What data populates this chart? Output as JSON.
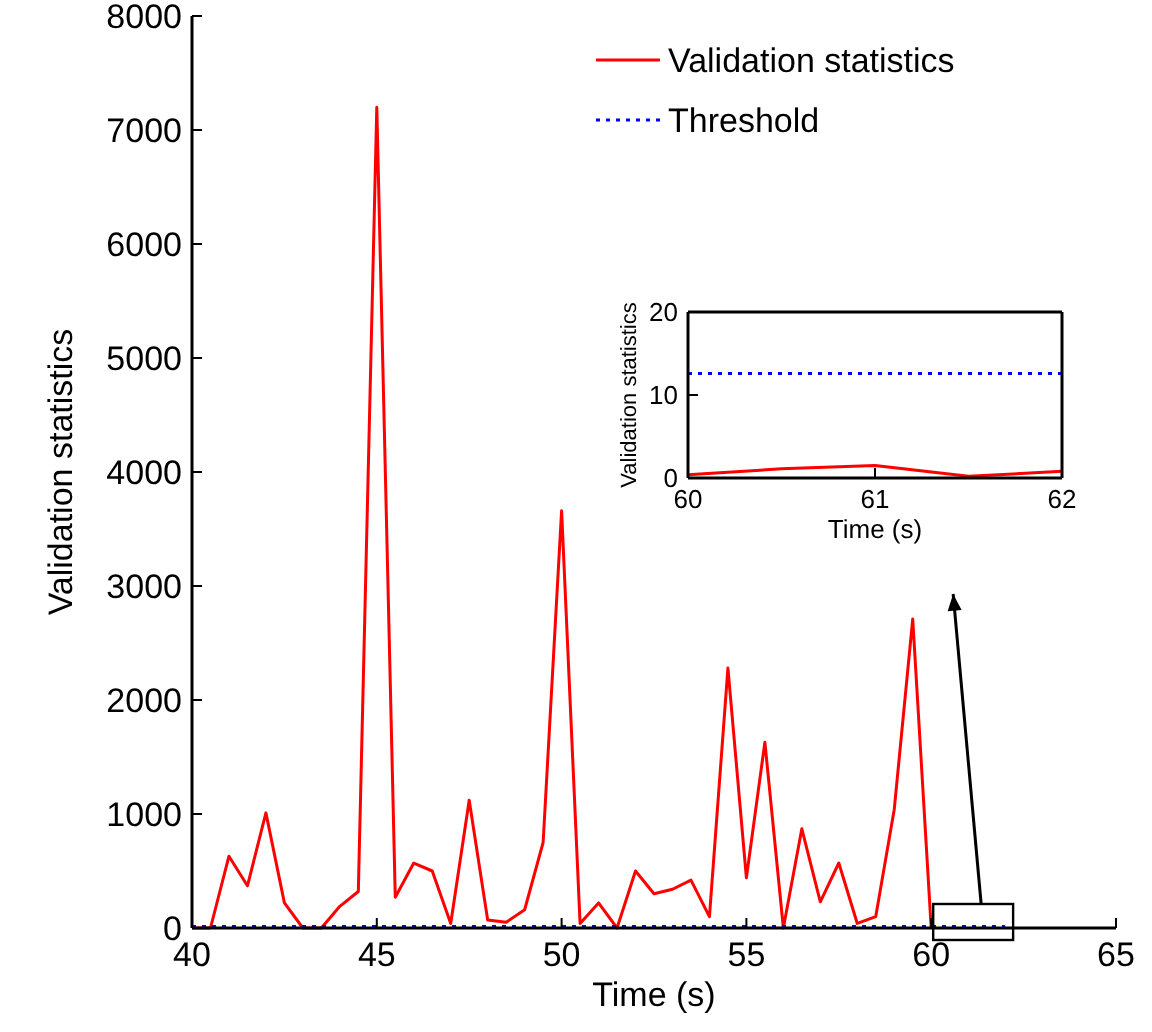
{
  "chart_data": [
    {
      "type": "line",
      "xlabel": "Time (s)",
      "ylabel": "Validation statistics",
      "xlim": [
        40,
        65
      ],
      "xticks": [
        40,
        45,
        50,
        55,
        60,
        65
      ],
      "ylim": [
        0,
        8000
      ],
      "yticks": [
        0,
        1000,
        2000,
        3000,
        4000,
        5000,
        6000,
        7000,
        8000
      ],
      "legend": "top right",
      "grid": false,
      "series": [
        {
          "name": "Validation statistics",
          "color": "#ff0000",
          "line_style": "solid",
          "x": [
            40,
            40.5,
            41,
            41.5,
            42,
            42.5,
            43,
            43.5,
            44,
            44.5,
            45,
            45.5,
            46,
            46.5,
            47,
            47.5,
            48,
            48.5,
            49,
            49.5,
            50,
            50.5,
            51,
            51.5,
            52,
            52.5,
            53,
            53.5,
            54,
            54.5,
            55,
            55.5,
            56,
            56.5,
            57,
            57.5,
            58,
            58.5,
            59,
            59.5,
            60
          ],
          "values": [
            0,
            0,
            630,
            370,
            1010,
            220,
            0,
            0,
            190,
            320,
            7200,
            270,
            570,
            500,
            40,
            1120,
            70,
            50,
            160,
            750,
            3660,
            40,
            220,
            0,
            500,
            300,
            340,
            420,
            100,
            2280,
            440,
            1630,
            0,
            870,
            230,
            570,
            40,
            100,
            1040,
            2710,
            0
          ]
        },
        {
          "name": "Threshold",
          "color": "#0000ff",
          "line_style": "dotted",
          "x": [
            40,
            62
          ],
          "values": [
            12.6,
            12.6
          ]
        }
      ]
    },
    {
      "type": "line",
      "xlabel": "Time (s)",
      "ylabel": "Validation statistics",
      "xlim": [
        60,
        62
      ],
      "xticks": [
        60,
        61,
        62
      ],
      "ylim": [
        0,
        20
      ],
      "yticks": [
        0,
        10,
        20
      ],
      "legend": false,
      "grid": false,
      "series": [
        {
          "color": "#ff0000",
          "line_style": "solid",
          "x": [
            60,
            60.5,
            61,
            61.5,
            62
          ],
          "values": [
            0.4,
            1.1,
            1.5,
            0.2,
            0.8
          ]
        },
        {
          "color": "#0000ff",
          "line_style": "dotted",
          "x": [
            60,
            62
          ],
          "values": [
            12.6,
            12.6
          ]
        }
      ]
    }
  ]
}
